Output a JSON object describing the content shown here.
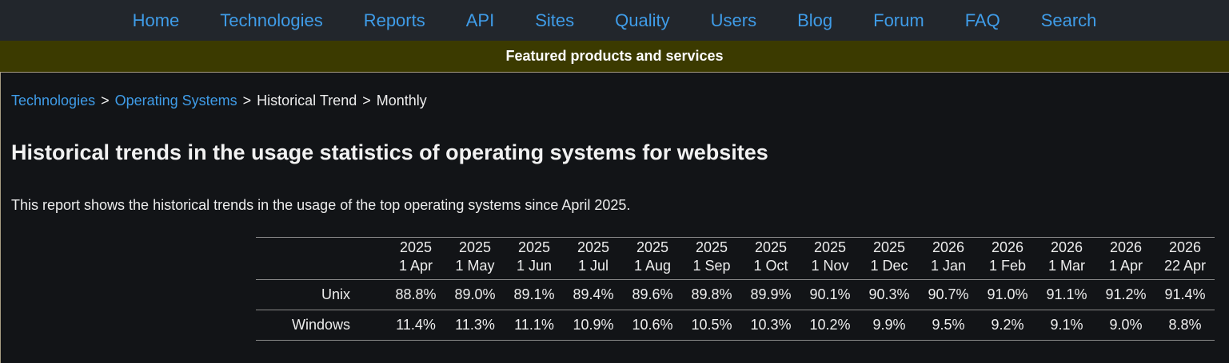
{
  "nav": {
    "items": [
      "Home",
      "Technologies",
      "Reports",
      "API",
      "Sites",
      "Quality",
      "Users",
      "Blog",
      "Forum",
      "FAQ",
      "Search"
    ]
  },
  "featured_bar": {
    "label": "Featured products and services"
  },
  "breadcrumb": {
    "separator": ">",
    "items": [
      {
        "label": "Technologies",
        "link": true
      },
      {
        "label": "Operating Systems",
        "link": true
      },
      {
        "label": "Historical Trend",
        "link": false
      },
      {
        "label": "Monthly",
        "link": false
      }
    ]
  },
  "page": {
    "title": "Historical trends in the usage statistics of operating systems for websites",
    "intro": "This report shows the historical trends in the usage of the top operating systems since April 2025."
  },
  "chart_data": {
    "type": "table",
    "title": "Historical trends in the usage statistics of operating systems for websites",
    "unit": "%",
    "columns": [
      {
        "year": "2025",
        "date": "1 Apr"
      },
      {
        "year": "2025",
        "date": "1 May"
      },
      {
        "year": "2025",
        "date": "1 Jun"
      },
      {
        "year": "2025",
        "date": "1 Jul"
      },
      {
        "year": "2025",
        "date": "1 Aug"
      },
      {
        "year": "2025",
        "date": "1 Sep"
      },
      {
        "year": "2025",
        "date": "1 Oct"
      },
      {
        "year": "2025",
        "date": "1 Nov"
      },
      {
        "year": "2025",
        "date": "1 Dec"
      },
      {
        "year": "2026",
        "date": "1 Jan"
      },
      {
        "year": "2026",
        "date": "1 Feb"
      },
      {
        "year": "2026",
        "date": "1 Mar"
      },
      {
        "year": "2026",
        "date": "1 Apr"
      },
      {
        "year": "2026",
        "date": "22 Apr"
      }
    ],
    "series": [
      {
        "name": "Unix",
        "values": [
          88.8,
          89.0,
          89.1,
          89.4,
          89.6,
          89.8,
          89.9,
          90.1,
          90.3,
          90.7,
          91.0,
          91.1,
          91.2,
          91.4
        ]
      },
      {
        "name": "Windows",
        "values": [
          11.4,
          11.3,
          11.1,
          10.9,
          10.6,
          10.5,
          10.3,
          10.2,
          9.9,
          9.5,
          9.2,
          9.1,
          9.0,
          8.8
        ]
      }
    ]
  },
  "colors": {
    "link_blue": "#3f9ce8",
    "nav_bg": "#22262c",
    "featured_bg": "#3b3a00",
    "content_bg": "#121417",
    "content_border": "#a69c82",
    "table_line": "#8a8a8a",
    "text": "#ededed"
  }
}
